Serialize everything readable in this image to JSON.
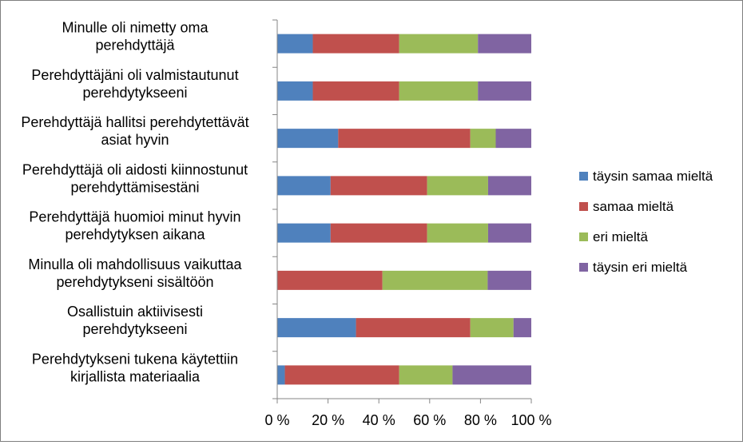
{
  "chart_data": {
    "type": "bar",
    "orientation": "horizontal",
    "stacked": "percent",
    "categories": [
      [
        "Minulle oli nimetty oma",
        "perehdyttäjä"
      ],
      [
        "Perehdyttäjäni oli valmistautunut",
        "perehdytykseeni"
      ],
      [
        "Perehdyttäjä hallitsi perehdytettävät",
        "asiat hyvin"
      ],
      [
        "Perehdyttäjä oli aidosti kiinnostunut",
        "perehdyttämisestäni"
      ],
      [
        "Perehdyttäjä huomioi minut hyvin",
        "perehdytyksen aikana"
      ],
      [
        "Minulla oli mahdollisuus vaikuttaa",
        "perehdytykseni sisältöön"
      ],
      [
        "Osallistuin aktiivisesti",
        "perehdytykseeni"
      ],
      [
        "Perehdytykseni tukena käytettiin",
        "kirjallista materiaalia"
      ]
    ],
    "series": [
      {
        "name": "täysin samaa mieltä",
        "color": "#4f81bd",
        "values": [
          14,
          14,
          24,
          21,
          21,
          0,
          31,
          3
        ]
      },
      {
        "name": "samaa mieltä",
        "color": "#c0504d",
        "values": [
          34,
          34,
          52,
          38,
          38,
          41,
          45,
          45
        ]
      },
      {
        "name": "eri mieltä",
        "color": "#9bbb59",
        "values": [
          31,
          31,
          10,
          24,
          24,
          41,
          17,
          21
        ]
      },
      {
        "name": "täysin eri mieltä",
        "color": "#8064a2",
        "values": [
          21,
          21,
          14,
          17,
          17,
          17,
          7,
          31
        ]
      }
    ],
    "x_ticks": [
      "0 %",
      "20 %",
      "40 %",
      "60 %",
      "80 %",
      "100 %"
    ],
    "xlim": [
      0,
      100
    ],
    "grid": false,
    "legend_position": "right"
  }
}
